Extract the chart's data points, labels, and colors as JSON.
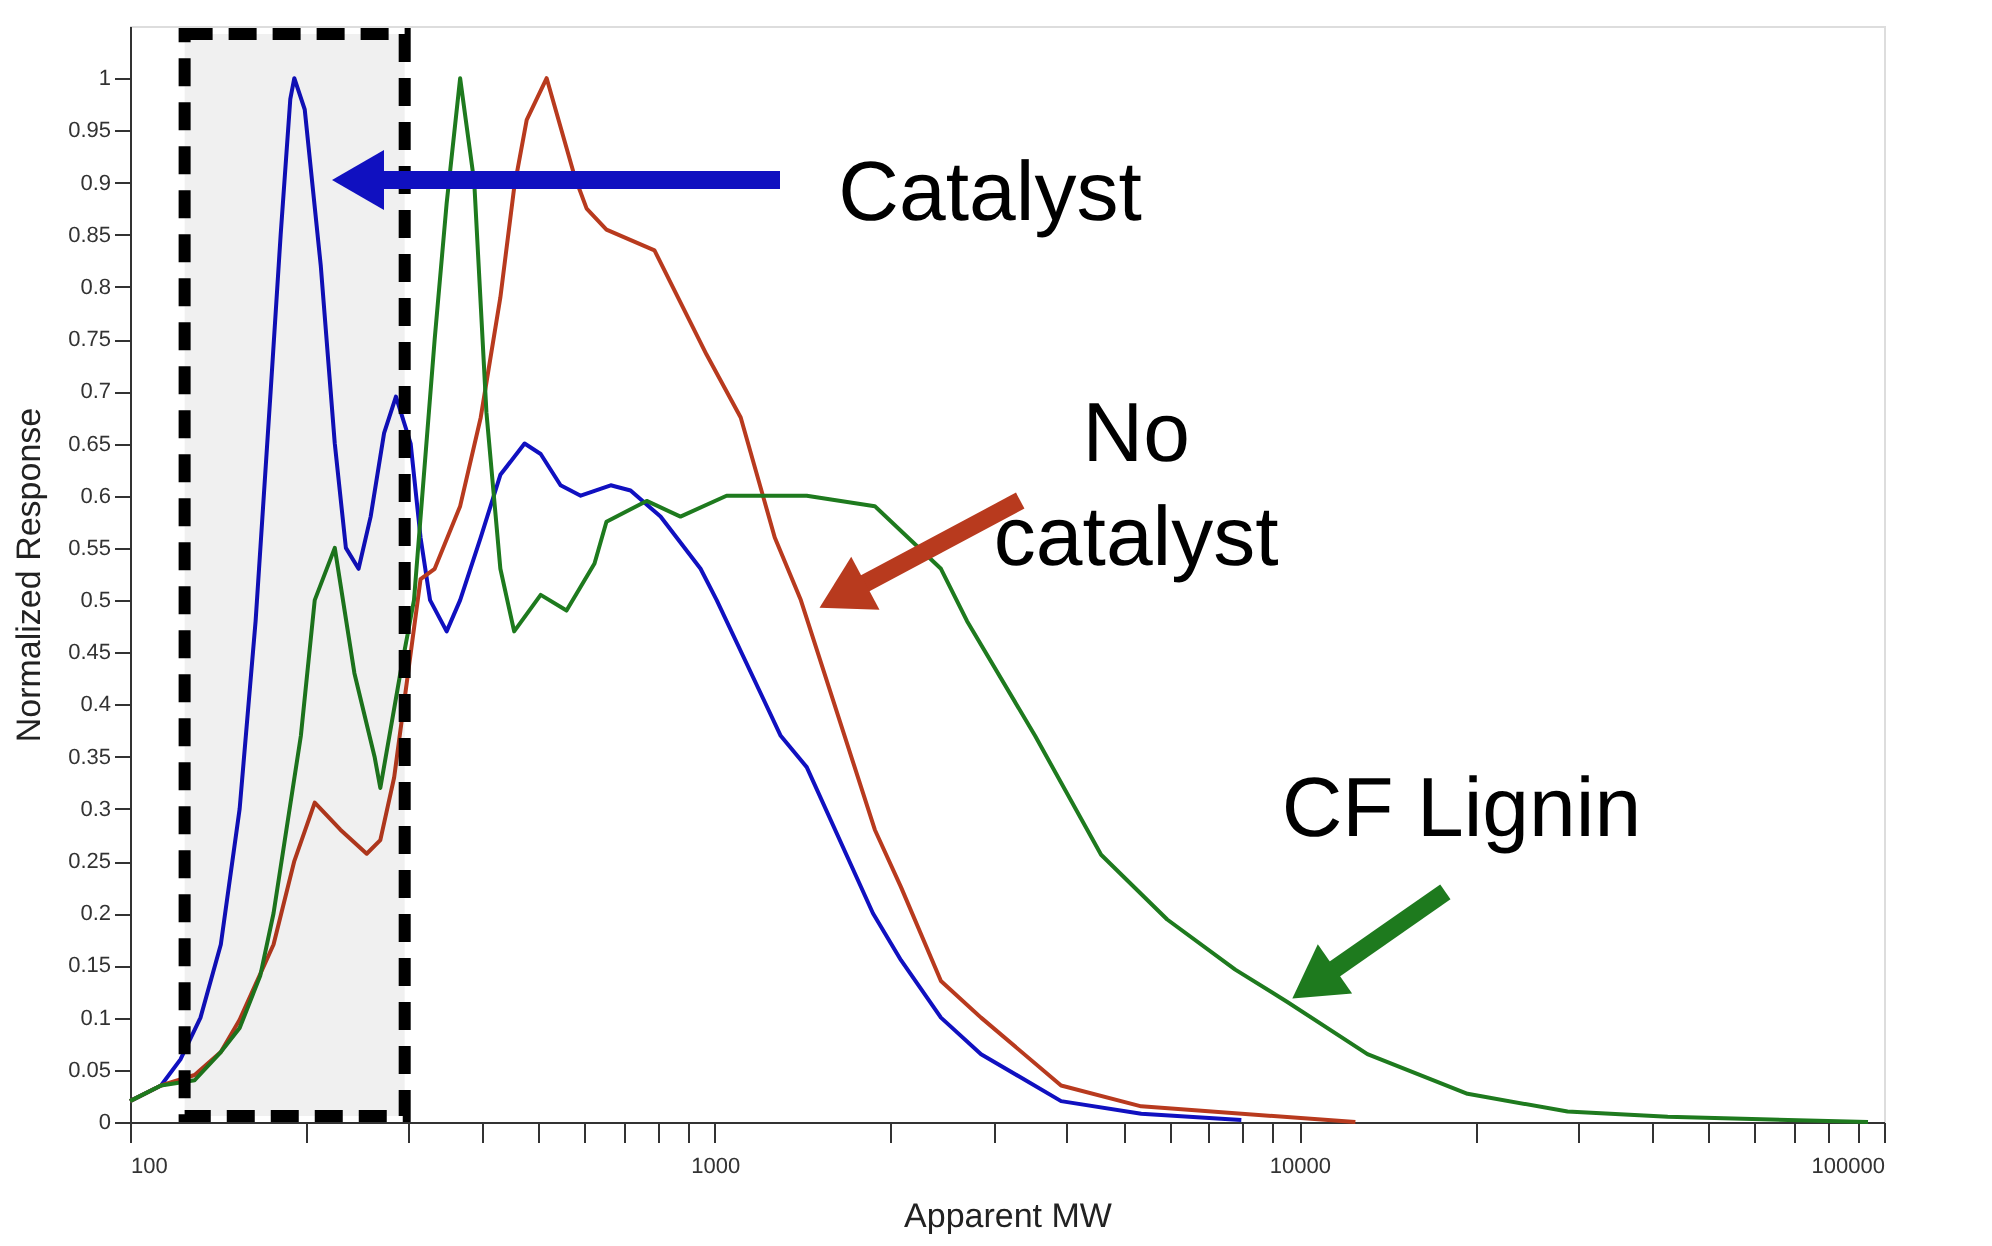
{
  "chart_data": {
    "type": "line",
    "xlabel": "Apparent MW",
    "ylabel": "Normalized Response",
    "log": "x",
    "xlim": [
      100,
      100000
    ],
    "ylim": [
      0,
      1.05
    ],
    "xticks": [
      100,
      {
        "value": 200,
        "label": null
      },
      {
        "value": 300,
        "label": null
      },
      {
        "value": 400,
        "label": null
      },
      {
        "value": 500,
        "label": null
      },
      {
        "value": 600,
        "label": null
      },
      {
        "value": 700,
        "label": null
      },
      {
        "value": 800,
        "label": null
      },
      {
        "value": 900,
        "label": null
      },
      1000,
      {
        "value": 2000,
        "label": null
      },
      {
        "value": 3000,
        "label": null
      },
      {
        "value": 4000,
        "label": null
      },
      {
        "value": 5000,
        "label": null
      },
      {
        "value": 6000,
        "label": null
      },
      {
        "value": 7000,
        "label": null
      },
      {
        "value": 8000,
        "label": null
      },
      {
        "value": 9000,
        "label": null
      },
      10000,
      {
        "value": 20000,
        "label": null
      },
      {
        "value": 30000,
        "label": null
      },
      {
        "value": 40000,
        "label": null
      },
      {
        "value": 50000,
        "label": null
      },
      {
        "value": 60000,
        "label": null
      },
      {
        "value": 70000,
        "label": null
      },
      {
        "value": 80000,
        "label": null
      },
      {
        "value": 90000,
        "label": null
      },
      100000
    ],
    "yticks": [
      0,
      0.05,
      0.1,
      0.15,
      0.2,
      0.25,
      0.3,
      0.35,
      0.4,
      0.45,
      0.5,
      0.55,
      0.6,
      0.65,
      0.7,
      0.75,
      0.8,
      0.85,
      0.9,
      0.95,
      1
    ],
    "grid": false,
    "marker": "none",
    "line_style": "solid",
    "series": [
      {
        "color": "#1010c0",
        "x": [
          100,
          113,
          122,
          132,
          143,
          154,
          164,
          174,
          181,
          188,
          191,
          199,
          212,
          224,
          234,
          246,
          258,
          272,
          285,
          302,
          314,
          326,
          348,
          367,
          398,
          430,
          473,
          504,
          545,
          590,
          664,
          718,
          808,
          946,
          1008,
          1297,
          1437,
          1865,
          2083,
          2438,
          2855,
          3913,
          5365,
          7350,
          7958
        ],
        "values": [
          0.02,
          0.035,
          0.06,
          0.1,
          0.17,
          0.3,
          0.48,
          0.7,
          0.85,
          0.98,
          1.0,
          0.97,
          0.82,
          0.65,
          0.55,
          0.53,
          0.58,
          0.66,
          0.695,
          0.65,
          0.56,
          0.5,
          0.47,
          0.5,
          0.56,
          0.62,
          0.65,
          0.64,
          0.61,
          0.6,
          0.61,
          0.605,
          0.58,
          0.53,
          0.5,
          0.37,
          0.34,
          0.2,
          0.155,
          0.1,
          0.065,
          0.02,
          0.008,
          0.003,
          0.002
        ]
      },
      {
        "color": "#b83a1e",
        "x": [
          100,
          113,
          129,
          143,
          154,
          176,
          191,
          207,
          229,
          254,
          268,
          283,
          314,
          332,
          367,
          398,
          430,
          454,
          477,
          516,
          576,
          604,
          653,
          789,
          969,
          1108,
          1267,
          1404,
          1879,
          2083,
          2438,
          2855,
          3913,
          5365,
          12470
        ],
        "values": [
          0.02,
          0.035,
          0.045,
          0.067,
          0.098,
          0.17,
          0.25,
          0.306,
          0.28,
          0.257,
          0.27,
          0.33,
          0.52,
          0.53,
          0.59,
          0.675,
          0.79,
          0.895,
          0.96,
          1.0,
          0.906,
          0.875,
          0.855,
          0.835,
          0.735,
          0.675,
          0.56,
          0.5,
          0.28,
          0.225,
          0.135,
          0.1,
          0.035,
          0.015,
          0.0
        ]
      },
      {
        "color": "#1e7a1e",
        "x": [
          100,
          113,
          129,
          143,
          154,
          167,
          176,
          196,
          207,
          224,
          242,
          262,
          268,
          290,
          306,
          332,
          348,
          367,
          388,
          407,
          430,
          454,
          504,
          558,
          623,
          653,
          765,
          874,
          1048,
          1437,
          1879,
          2438,
          2701,
          3532,
          4581,
          5943,
          7770,
          9539,
          13075,
          19395,
          28760,
          42670,
          93900
        ],
        "values": [
          0.02,
          0.035,
          0.04,
          0.067,
          0.09,
          0.14,
          0.2,
          0.37,
          0.5,
          0.55,
          0.43,
          0.35,
          0.32,
          0.43,
          0.5,
          0.75,
          0.88,
          1.0,
          0.9,
          0.68,
          0.53,
          0.47,
          0.505,
          0.49,
          0.535,
          0.575,
          0.595,
          0.58,
          0.6,
          0.6,
          0.59,
          0.53,
          0.48,
          0.37,
          0.256,
          0.194,
          0.146,
          0.115,
          0.065,
          0.027,
          0.01,
          0.005,
          0.0
        ]
      }
    ],
    "bands": [
      {
        "axis": "x",
        "from": 124,
        "to": 295,
        "color": "#000000"
      }
    ],
    "annotations": [
      "Catalyst",
      {
        "text": "No\ncatalyst",
        "x": 1480,
        "y": 0.49
      },
      {
        "text": "CF Lignin",
        "x": 9540,
        "y": 0.115
      }
    ]
  }
}
